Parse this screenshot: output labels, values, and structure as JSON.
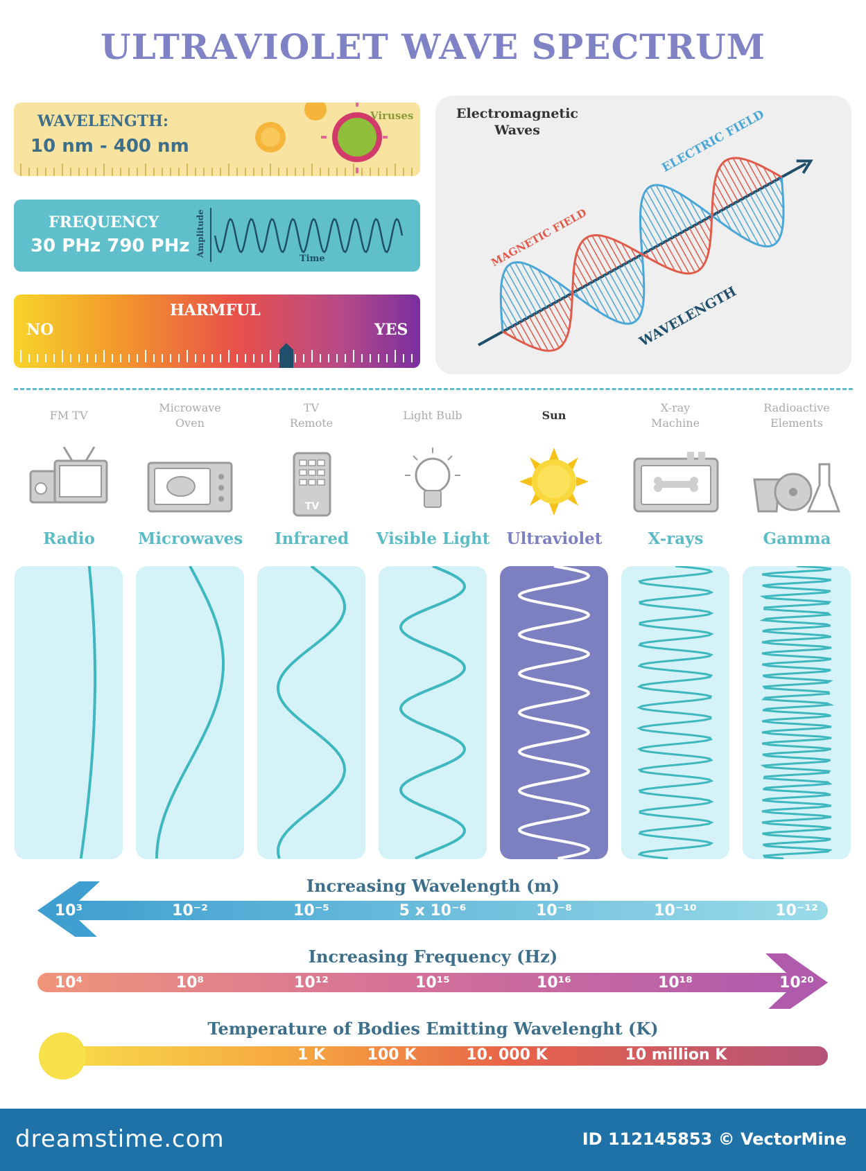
{
  "title": "ULTRAVIOLET WAVE SPECTRUM",
  "wavelength_card": {
    "heading": "WAVELENGTH:",
    "value": "10 nm - 400 nm",
    "viruses_label": "Viruses",
    "color": "#f9e3a0"
  },
  "frequency_card": {
    "heading": "FREQUENCY",
    "value": "30 PHz 790 PHz",
    "amplitude_label": "Amplitude",
    "time_label": "Time",
    "color": "#5fc0cc"
  },
  "harmful_card": {
    "heading": "HARMFUL",
    "no_label": "NO",
    "yes_label": "YES",
    "indicator_level": 0.67
  },
  "em_diagram": {
    "title_line1": "Electromagnetic",
    "title_line2": "Waves",
    "electric_label": "ELECTRIC FIELD",
    "magnetic_label": "MAGNETIC FIELD",
    "wavelength_label": "WAVELENGTH"
  },
  "sources": [
    {
      "line1": "FM  TV",
      "line2": "",
      "band": "Radio",
      "icon": "radio-tv-icon",
      "highlight": false
    },
    {
      "line1": "Microwave",
      "line2": "Oven",
      "band": "Microwaves",
      "icon": "microwave-oven-icon",
      "highlight": false
    },
    {
      "line1": "TV",
      "line2": "Remote",
      "band": "Infrared",
      "icon": "tv-remote-icon",
      "highlight": false
    },
    {
      "line1": "Light Bulb",
      "line2": "",
      "band": "Visible Light",
      "icon": "light-bulb-icon",
      "highlight": false
    },
    {
      "line1": "Sun",
      "line2": "",
      "band": "Ultraviolet",
      "icon": "sun-icon",
      "highlight": true
    },
    {
      "line1": "X-ray",
      "line2": "Machine",
      "band": "X-rays",
      "icon": "xray-machine-icon",
      "highlight": false
    },
    {
      "line1": "Radioactive",
      "line2": "Elements",
      "band": "Gamma",
      "icon": "radioactive-elements-icon",
      "highlight": false
    }
  ],
  "wavelength_scale": {
    "title": "Increasing Wavelength (m)",
    "ticks": [
      "10³",
      "10⁻²",
      "10⁻⁵",
      "5 x 10⁻⁶",
      "10⁻⁸",
      "10⁻¹⁰",
      "10⁻¹²"
    ]
  },
  "frequency_scale": {
    "title": "Increasing Frequency (Hz)",
    "ticks": [
      "10⁴",
      "10⁸",
      "10¹²",
      "10¹⁵",
      "10¹⁶",
      "10¹⁸",
      "10²⁰"
    ]
  },
  "temperature_scale": {
    "title": "Temperature of Bodies Emitting Wavelenght (K)",
    "ticks": [
      "1 K",
      "100 K",
      "10. 000 K",
      "10 million K"
    ]
  },
  "footer": {
    "logo": "dreamstime.com",
    "id": "ID 112145853 © VectorMine"
  },
  "colors": {
    "accent": "#7f82c4",
    "teal": "#5bbcc6",
    "panel": "#d4f2f8",
    "uv_panel": "#7d80c0"
  }
}
